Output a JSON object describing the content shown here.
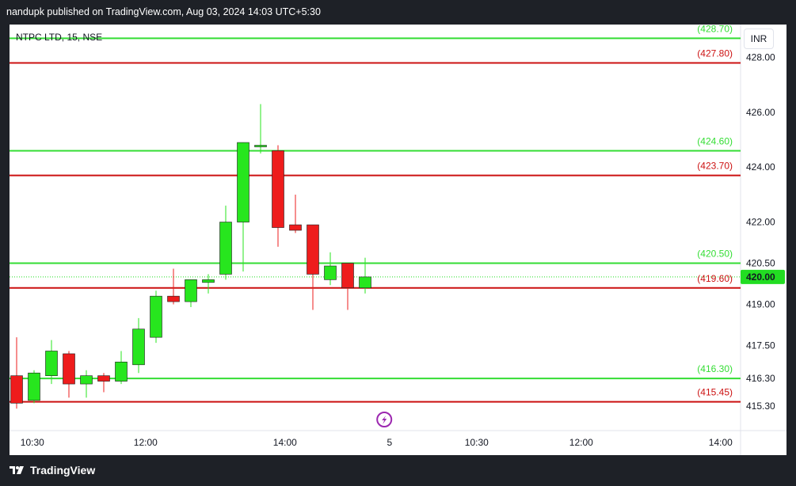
{
  "caption": "nandupk published on TradingView.com, Aug 03, 2024 14:03 UTC+5:30",
  "symbol": "NTPC LTD, 15, NSE",
  "currency_button": "INR",
  "footer_brand": "TradingView",
  "colors": {
    "up": "#27e61e",
    "down": "#ee1c1c",
    "support_line": "#33dd33",
    "resistance_line": "#cc1111",
    "price_tag": "#22dd22"
  },
  "icons": {
    "event_marker": "lightning-icon",
    "brand": "tradingview-logo-icon"
  },
  "chart_data": {
    "type": "candlestick",
    "title": "NTPC LTD, 15, NSE",
    "ylim": [
      414.4,
      429.2
    ],
    "ytick_labels": [
      {
        "value": 428.0,
        "label": "428.00"
      },
      {
        "value": 426.0,
        "label": "426.00"
      },
      {
        "value": 424.0,
        "label": "424.00"
      },
      {
        "value": 422.0,
        "label": "422.00"
      },
      {
        "value": 420.5,
        "label": "420.50"
      },
      {
        "value": 419.0,
        "label": "419.00"
      },
      {
        "value": 417.5,
        "label": "417.50"
      },
      {
        "value": 416.3,
        "label": "416.30"
      },
      {
        "value": 415.3,
        "label": "415.30"
      }
    ],
    "xtick_labels": [
      {
        "bar": 0.9,
        "label": "10:30"
      },
      {
        "bar": 7.4,
        "label": "12:00"
      },
      {
        "bar": 15.4,
        "label": "14:00"
      },
      {
        "bar": 21.4,
        "label": "5"
      },
      {
        "bar": 26.4,
        "label": "10:30"
      },
      {
        "bar": 32.4,
        "label": "12:00"
      },
      {
        "bar": 40.4,
        "label": "14:00"
      }
    ],
    "candles": [
      {
        "o": 416.4,
        "h": 417.8,
        "l": 415.2,
        "c": 415.4
      },
      {
        "o": 415.5,
        "h": 416.6,
        "l": 415.4,
        "c": 416.5
      },
      {
        "o": 416.4,
        "h": 417.7,
        "l": 416.1,
        "c": 417.3
      },
      {
        "o": 417.2,
        "h": 417.3,
        "l": 415.6,
        "c": 416.1
      },
      {
        "o": 416.1,
        "h": 416.6,
        "l": 415.6,
        "c": 416.4
      },
      {
        "o": 416.4,
        "h": 416.5,
        "l": 415.8,
        "c": 416.2
      },
      {
        "o": 416.2,
        "h": 417.3,
        "l": 416.1,
        "c": 416.9
      },
      {
        "o": 416.8,
        "h": 418.5,
        "l": 416.5,
        "c": 418.1
      },
      {
        "o": 417.8,
        "h": 419.5,
        "l": 417.6,
        "c": 419.3
      },
      {
        "o": 419.3,
        "h": 420.3,
        "l": 419.0,
        "c": 419.1
      },
      {
        "o": 419.1,
        "h": 419.9,
        "l": 418.9,
        "c": 419.9
      },
      {
        "o": 419.8,
        "h": 420.1,
        "l": 419.4,
        "c": 419.9
      },
      {
        "o": 420.1,
        "h": 422.6,
        "l": 419.9,
        "c": 422.0
      },
      {
        "o": 422.0,
        "h": 424.9,
        "l": 420.2,
        "c": 424.9
      },
      {
        "o": 424.8,
        "h": 426.3,
        "l": 424.5,
        "c": 424.8
      },
      {
        "o": 424.6,
        "h": 424.8,
        "l": 421.1,
        "c": 421.8
      },
      {
        "o": 421.9,
        "h": 423.0,
        "l": 421.6,
        "c": 421.7
      },
      {
        "o": 421.9,
        "h": 421.9,
        "l": 418.8,
        "c": 420.1
      },
      {
        "o": 419.9,
        "h": 420.9,
        "l": 419.7,
        "c": 420.4
      },
      {
        "o": 420.5,
        "h": 420.5,
        "l": 418.8,
        "c": 419.6
      },
      {
        "o": 419.6,
        "h": 420.7,
        "l": 419.4,
        "c": 420.0
      }
    ],
    "levels": [
      {
        "value": 428.7,
        "label": "(428.70)",
        "kind": "support"
      },
      {
        "value": 427.8,
        "label": "(427.80)",
        "kind": "resistance"
      },
      {
        "value": 424.6,
        "label": "(424.60)",
        "kind": "support"
      },
      {
        "value": 423.7,
        "label": "(423.70)",
        "kind": "resistance"
      },
      {
        "value": 420.5,
        "label": "(420.50)",
        "kind": "support"
      },
      {
        "value": 419.6,
        "label": "(419.60)",
        "kind": "resistance"
      },
      {
        "value": 416.3,
        "label": "(416.30)",
        "kind": "support"
      },
      {
        "value": 415.45,
        "label": "(415.45)",
        "kind": "resistance"
      }
    ],
    "last_price": {
      "value": 420.0,
      "label": "420.00"
    },
    "event_marker_bar": 21.1
  }
}
